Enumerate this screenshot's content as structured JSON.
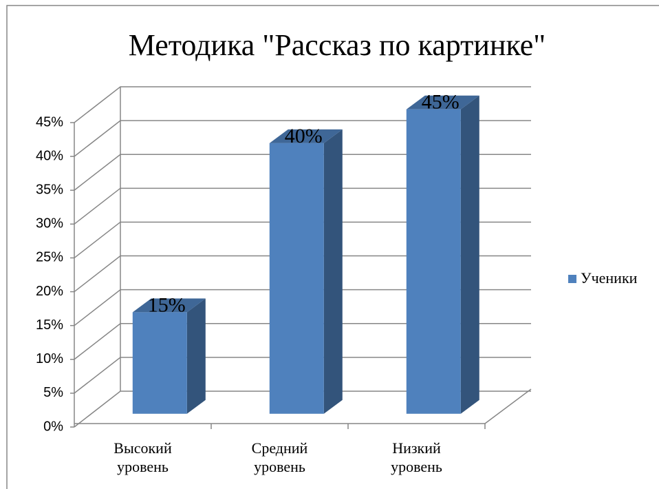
{
  "chart_data": {
    "type": "bar3d",
    "title": "Методика \"Рассказ по картинке\"",
    "categories": [
      "Высокий уровень",
      "Средний уровень",
      "Низкий уровень"
    ],
    "series": [
      {
        "name": "Ученики",
        "color": "#4f81bd",
        "values": [
          15,
          40,
          45
        ],
        "value_labels": [
          "15%",
          "40%",
          "45%"
        ]
      }
    ],
    "ylim": [
      0,
      45
    ],
    "yticks": [
      {
        "value": 0,
        "label": "0%"
      },
      {
        "value": 5,
        "label": "5%"
      },
      {
        "value": 10,
        "label": "10%"
      },
      {
        "value": 15,
        "label": "15%"
      },
      {
        "value": 20,
        "label": "20%"
      },
      {
        "value": 25,
        "label": "25%"
      },
      {
        "value": 30,
        "label": "30%"
      },
      {
        "value": 35,
        "label": "35%"
      },
      {
        "value": 40,
        "label": "40%"
      },
      {
        "value": 45,
        "label": "45%"
      }
    ],
    "grid": true,
    "legend": "right"
  }
}
